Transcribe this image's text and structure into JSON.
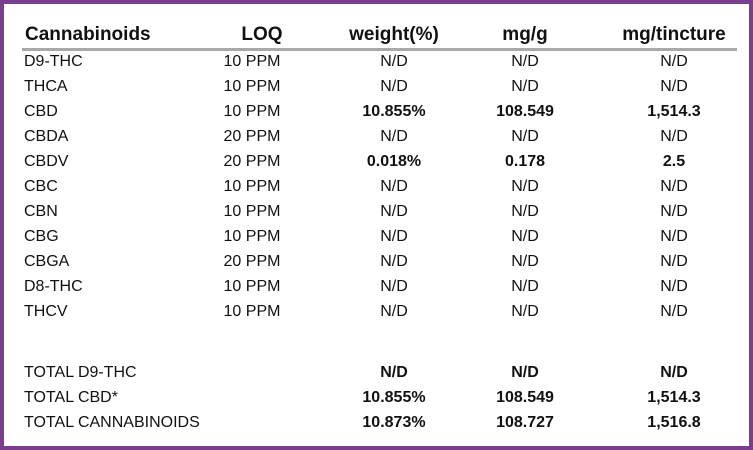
{
  "header": {
    "name": "Cannabinoids",
    "loq": "LOQ",
    "weight": "weight(%)",
    "mg_g": "mg/g",
    "mg_tincture": "mg/tincture"
  },
  "rows": [
    {
      "name": "D9-THC",
      "loq": "10 PPM",
      "weight": "N/D",
      "mg_g": "N/D",
      "mg_tincture": "N/D",
      "bold": false
    },
    {
      "name": "THCA",
      "loq": "10 PPM",
      "weight": "N/D",
      "mg_g": "N/D",
      "mg_tincture": "N/D",
      "bold": false
    },
    {
      "name": "CBD",
      "loq": "10 PPM",
      "weight": "10.855%",
      "mg_g": "108.549",
      "mg_tincture": "1,514.3",
      "bold": true
    },
    {
      "name": "CBDA",
      "loq": "20 PPM",
      "weight": "N/D",
      "mg_g": "N/D",
      "mg_tincture": "N/D",
      "bold": false
    },
    {
      "name": "CBDV",
      "loq": "20 PPM",
      "weight": "0.018%",
      "mg_g": "0.178",
      "mg_tincture": "2.5",
      "bold": true
    },
    {
      "name": "CBC",
      "loq": "10 PPM",
      "weight": "N/D",
      "mg_g": "N/D",
      "mg_tincture": "N/D",
      "bold": false
    },
    {
      "name": "CBN",
      "loq": "10 PPM",
      "weight": "N/D",
      "mg_g": "N/D",
      "mg_tincture": "N/D",
      "bold": false
    },
    {
      "name": "CBG",
      "loq": "10 PPM",
      "weight": "N/D",
      "mg_g": "N/D",
      "mg_tincture": "N/D",
      "bold": false
    },
    {
      "name": "CBGA",
      "loq": "20 PPM",
      "weight": "N/D",
      "mg_g": "N/D",
      "mg_tincture": "N/D",
      "bold": false
    },
    {
      "name": "D8-THC",
      "loq": "10 PPM",
      "weight": "N/D",
      "mg_g": "N/D",
      "mg_tincture": "N/D",
      "bold": false
    },
    {
      "name": "THCV",
      "loq": "10 PPM",
      "weight": "N/D",
      "mg_g": "N/D",
      "mg_tincture": "N/D",
      "bold": false
    }
  ],
  "totals": [
    {
      "name": "TOTAL D9-THC",
      "weight": "N/D",
      "mg_g": "N/D",
      "mg_tincture": "N/D"
    },
    {
      "name": "TOTAL CBD*",
      "weight": "10.855%",
      "mg_g": "108.549",
      "mg_tincture": "1,514.3"
    },
    {
      "name": "TOTAL CANNABINOIDS",
      "weight": "10.873%",
      "mg_g": "108.727",
      "mg_tincture": "1,516.8"
    }
  ],
  "colors": {
    "frame_border": "#7b3d8e",
    "header_rule": "#a9a9a9"
  }
}
